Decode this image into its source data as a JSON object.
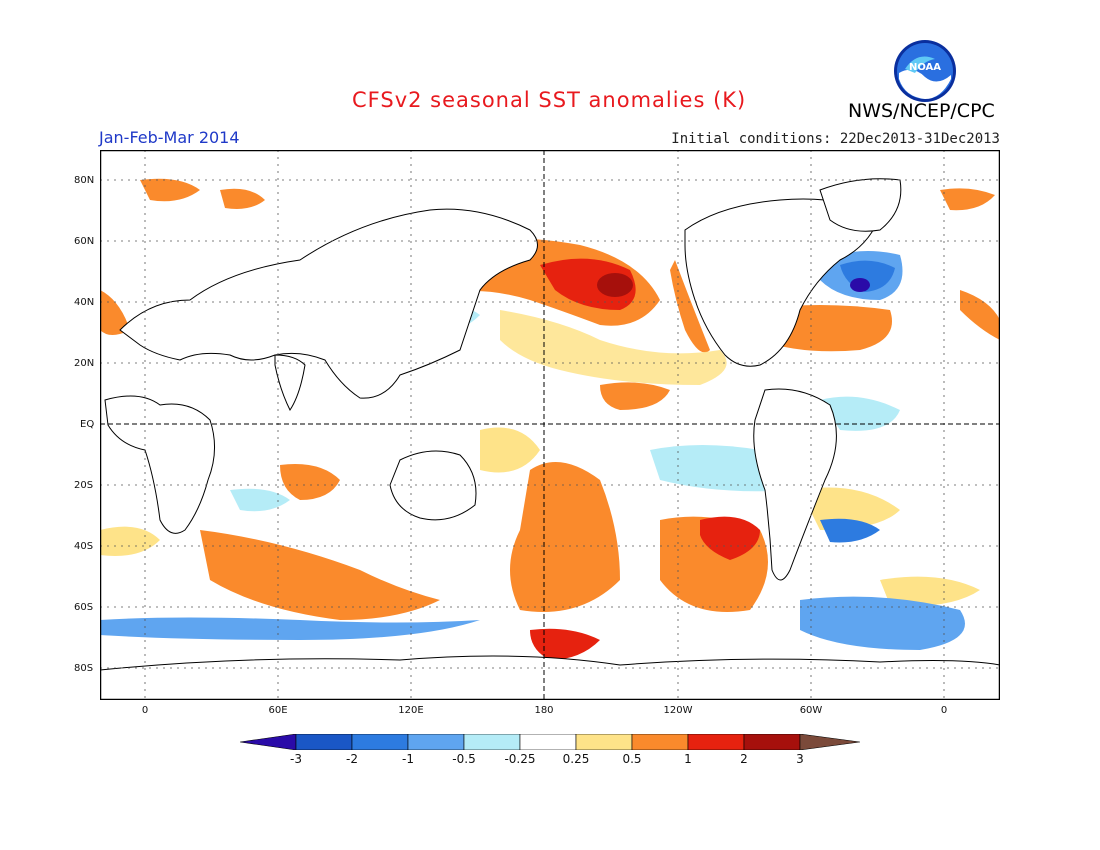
{
  "header": {
    "title": "CFSv2 seasonal SST anomalies (K)",
    "season": "Jan-Feb-Mar 2014",
    "initial_conditions": "Initial conditions: 22Dec2013-31Dec2013",
    "organization": "NWS/NCEP/CPC",
    "logo_text": "NOAA"
  },
  "map": {
    "lat_labels": [
      "80N",
      "60N",
      "40N",
      "20N",
      "EQ",
      "20S",
      "40S",
      "60S",
      "80S"
    ],
    "lon_labels": [
      "0",
      "60E",
      "120E",
      "180",
      "120W",
      "60W",
      "0"
    ]
  },
  "colorbar": {
    "labels": [
      "-3",
      "-2",
      "-1",
      "-0.5",
      "-0.25",
      "0.25",
      "0.5",
      "1",
      "2",
      "3"
    ],
    "colors": [
      "#2a0ba8",
      "#1a57c6",
      "#2d7be0",
      "#5fa5f0",
      "#b5ecf7",
      "#ffffff",
      "#fee389",
      "#fa8a2c",
      "#e6220f",
      "#a6100c",
      "#7b4a3a"
    ]
  }
}
